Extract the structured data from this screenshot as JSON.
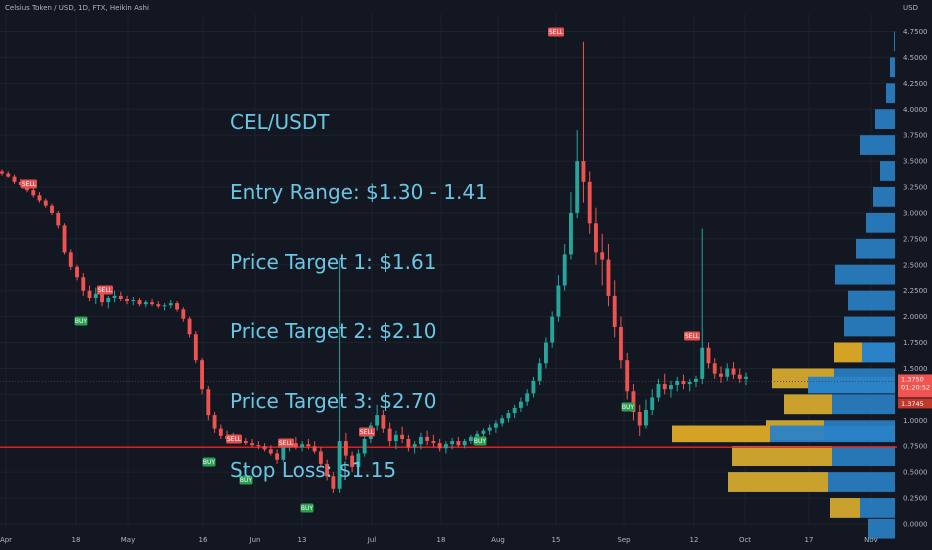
{
  "header": {
    "title": "Celsius Token / USD, 1D, FTX, Heikin Ashi"
  },
  "price_axis": {
    "currency": "USD"
  },
  "annotation": {
    "lines": [
      "CEL/USDT",
      "Entry Range: $1.30 - 1.41",
      "Price Target 1: $1.61",
      "Price Target 2: $2.10",
      "Price Target 3: $2.70",
      "Stop Loss: $1.15"
    ],
    "color": "#6ac7e3"
  },
  "price_labels": {
    "last": "1.3750",
    "countdown": "01:20:52",
    "second": "1.3745",
    "color": "#f05350"
  },
  "colors": {
    "background": "#131722",
    "up": "#26a69a",
    "down": "#ef5350",
    "hline": "#ff1e1e",
    "vp_blue": "#2a82c7",
    "vp_gold": "#d4a326",
    "buy_tag": "#2b9e52",
    "sell_tag": "#e05252"
  },
  "chart_data": {
    "type": "candlestick",
    "title": "Celsius Token / USD, 1D, FTX, Heikin Ashi",
    "y_ticks": [
      "0.0000",
      "0.2500",
      "0.5000",
      "0.7500",
      "1.0000",
      "1.2500",
      "1.5000",
      "1.7500",
      "2.0000",
      "2.2500",
      "2.5000",
      "2.7500",
      "3.0000",
      "3.2500",
      "3.5000",
      "3.7500",
      "4.0000",
      "4.2500",
      "4.5000",
      "4.7500"
    ],
    "x_ticks": [
      "Apr",
      "18",
      "May",
      "16",
      "Jun",
      "13",
      "Jul",
      "18",
      "Aug",
      "15",
      "Sep",
      "12",
      "Oct",
      "17",
      "Nov"
    ],
    "ylim": [
      0,
      4.85
    ],
    "horizontal_line": 0.74,
    "price_marker": 1.375,
    "candles": [
      [
        3.4,
        3.42,
        3.36,
        3.38
      ],
      [
        3.38,
        3.4,
        3.34,
        3.35
      ],
      [
        3.35,
        3.37,
        3.28,
        3.3
      ],
      [
        3.3,
        3.33,
        3.25,
        3.27
      ],
      [
        3.27,
        3.3,
        3.2,
        3.22
      ],
      [
        3.22,
        3.25,
        3.15,
        3.17
      ],
      [
        3.17,
        3.2,
        3.1,
        3.12
      ],
      [
        3.12,
        3.14,
        3.05,
        3.07
      ],
      [
        3.07,
        3.09,
        2.98,
        3.0
      ],
      [
        3.0,
        3.02,
        2.85,
        2.88
      ],
      [
        2.88,
        2.9,
        2.6,
        2.62
      ],
      [
        2.62,
        2.65,
        2.45,
        2.48
      ],
      [
        2.48,
        2.5,
        2.35,
        2.38
      ],
      [
        2.38,
        2.42,
        2.2,
        2.25
      ],
      [
        2.25,
        2.3,
        2.15,
        2.18
      ],
      [
        2.18,
        2.28,
        2.12,
        2.22
      ],
      [
        2.22,
        2.26,
        2.1,
        2.14
      ],
      [
        2.14,
        2.2,
        2.08,
        2.18
      ],
      [
        2.18,
        2.25,
        2.14,
        2.2
      ],
      [
        2.2,
        2.24,
        2.15,
        2.17
      ],
      [
        2.17,
        2.2,
        2.12,
        2.15
      ],
      [
        2.15,
        2.19,
        2.11,
        2.16
      ],
      [
        2.16,
        2.18,
        2.1,
        2.12
      ],
      [
        2.12,
        2.16,
        2.09,
        2.14
      ],
      [
        2.14,
        2.17,
        2.1,
        2.12
      ],
      [
        2.12,
        2.15,
        2.08,
        2.1
      ],
      [
        2.1,
        2.13,
        2.06,
        2.11
      ],
      [
        2.11,
        2.16,
        2.08,
        2.13
      ],
      [
        2.13,
        2.15,
        2.05,
        2.07
      ],
      [
        2.07,
        2.09,
        1.95,
        1.98
      ],
      [
        1.98,
        2.0,
        1.8,
        1.83
      ],
      [
        1.83,
        1.86,
        1.55,
        1.58
      ],
      [
        1.58,
        1.6,
        1.25,
        1.3
      ],
      [
        1.3,
        1.33,
        1.0,
        1.05
      ],
      [
        1.05,
        1.08,
        0.88,
        0.92
      ],
      [
        0.92,
        0.96,
        0.82,
        0.85
      ],
      [
        0.85,
        0.9,
        0.78,
        0.82
      ],
      [
        0.82,
        0.88,
        0.78,
        0.84
      ],
      [
        0.84,
        0.86,
        0.78,
        0.8
      ],
      [
        0.8,
        0.83,
        0.76,
        0.78
      ],
      [
        0.78,
        0.82,
        0.74,
        0.76
      ],
      [
        0.76,
        0.8,
        0.72,
        0.75
      ],
      [
        0.75,
        0.78,
        0.7,
        0.72
      ],
      [
        0.72,
        0.76,
        0.66,
        0.68
      ],
      [
        0.68,
        0.72,
        0.58,
        0.62
      ],
      [
        0.62,
        0.78,
        0.6,
        0.74
      ],
      [
        0.74,
        0.82,
        0.7,
        0.78
      ],
      [
        0.78,
        0.84,
        0.72,
        0.74
      ],
      [
        0.74,
        0.8,
        0.7,
        0.77
      ],
      [
        0.77,
        0.82,
        0.72,
        0.75
      ],
      [
        0.75,
        0.8,
        0.68,
        0.7
      ],
      [
        0.7,
        0.74,
        0.55,
        0.58
      ],
      [
        0.58,
        0.62,
        0.42,
        0.46
      ],
      [
        0.46,
        0.5,
        0.3,
        0.34
      ],
      [
        0.34,
        2.55,
        0.3,
        0.8
      ],
      [
        0.8,
        0.88,
        0.62,
        0.66
      ],
      [
        0.66,
        0.7,
        0.5,
        0.55
      ],
      [
        0.55,
        0.72,
        0.52,
        0.68
      ],
      [
        0.68,
        0.85,
        0.65,
        0.82
      ],
      [
        0.82,
        0.98,
        0.78,
        0.95
      ],
      [
        0.95,
        1.15,
        0.9,
        1.05
      ],
      [
        1.05,
        1.1,
        0.88,
        0.92
      ],
      [
        0.92,
        0.98,
        0.75,
        0.8
      ],
      [
        0.8,
        0.9,
        0.72,
        0.86
      ],
      [
        0.86,
        0.94,
        0.78,
        0.82
      ],
      [
        0.82,
        0.86,
        0.7,
        0.74
      ],
      [
        0.74,
        0.8,
        0.68,
        0.77
      ],
      [
        0.77,
        0.88,
        0.72,
        0.84
      ],
      [
        0.84,
        0.9,
        0.76,
        0.8
      ],
      [
        0.8,
        0.86,
        0.74,
        0.78
      ],
      [
        0.78,
        0.82,
        0.7,
        0.73
      ],
      [
        0.73,
        0.8,
        0.68,
        0.77
      ],
      [
        0.77,
        0.83,
        0.72,
        0.8
      ],
      [
        0.8,
        0.84,
        0.74,
        0.76
      ],
      [
        0.76,
        0.82,
        0.73,
        0.8
      ],
      [
        0.8,
        0.86,
        0.77,
        0.84
      ],
      [
        0.84,
        0.9,
        0.8,
        0.87
      ],
      [
        0.87,
        0.92,
        0.82,
        0.9
      ],
      [
        0.9,
        0.96,
        0.86,
        0.93
      ],
      [
        0.93,
        1.0,
        0.88,
        0.97
      ],
      [
        0.97,
        1.05,
        0.94,
        1.02
      ],
      [
        1.02,
        1.1,
        0.98,
        1.07
      ],
      [
        1.07,
        1.15,
        1.02,
        1.12
      ],
      [
        1.12,
        1.22,
        1.08,
        1.18
      ],
      [
        1.18,
        1.3,
        1.14,
        1.26
      ],
      [
        1.26,
        1.42,
        1.22,
        1.38
      ],
      [
        1.38,
        1.6,
        1.34,
        1.55
      ],
      [
        1.55,
        1.8,
        1.5,
        1.75
      ],
      [
        1.75,
        2.05,
        1.7,
        2.0
      ],
      [
        2.0,
        2.4,
        1.95,
        2.3
      ],
      [
        2.3,
        2.7,
        2.25,
        2.6
      ],
      [
        2.6,
        3.2,
        2.55,
        3.0
      ],
      [
        3.0,
        3.8,
        2.95,
        3.5
      ],
      [
        3.5,
        4.65,
        3.1,
        3.3
      ],
      [
        3.3,
        3.4,
        2.8,
        2.9
      ],
      [
        2.9,
        3.05,
        2.5,
        2.62
      ],
      [
        2.62,
        2.8,
        2.3,
        2.55
      ],
      [
        2.55,
        2.7,
        2.1,
        2.2
      ],
      [
        2.2,
        2.35,
        1.8,
        1.9
      ],
      [
        1.9,
        2.0,
        1.5,
        1.58
      ],
      [
        1.58,
        1.65,
        1.2,
        1.28
      ],
      [
        1.28,
        1.35,
        1.0,
        1.08
      ],
      [
        1.08,
        1.15,
        0.85,
        0.95
      ],
      [
        0.95,
        1.2,
        0.92,
        1.1
      ],
      [
        1.1,
        1.3,
        1.05,
        1.22
      ],
      [
        1.22,
        1.4,
        1.18,
        1.35
      ],
      [
        1.35,
        1.45,
        1.25,
        1.3
      ],
      [
        1.3,
        1.38,
        1.22,
        1.34
      ],
      [
        1.34,
        1.42,
        1.28,
        1.38
      ],
      [
        1.38,
        1.44,
        1.3,
        1.35
      ],
      [
        1.35,
        1.4,
        1.28,
        1.37
      ],
      [
        1.37,
        1.43,
        1.32,
        1.4
      ],
      [
        1.4,
        2.85,
        1.35,
        1.7
      ],
      [
        1.7,
        1.75,
        1.5,
        1.55
      ],
      [
        1.55,
        1.6,
        1.4,
        1.45
      ],
      [
        1.45,
        1.52,
        1.36,
        1.42
      ],
      [
        1.42,
        1.55,
        1.38,
        1.5
      ],
      [
        1.5,
        1.56,
        1.4,
        1.44
      ],
      [
        1.44,
        1.5,
        1.36,
        1.4
      ],
      [
        1.4,
        1.46,
        1.34,
        1.42
      ]
    ]
  }
}
